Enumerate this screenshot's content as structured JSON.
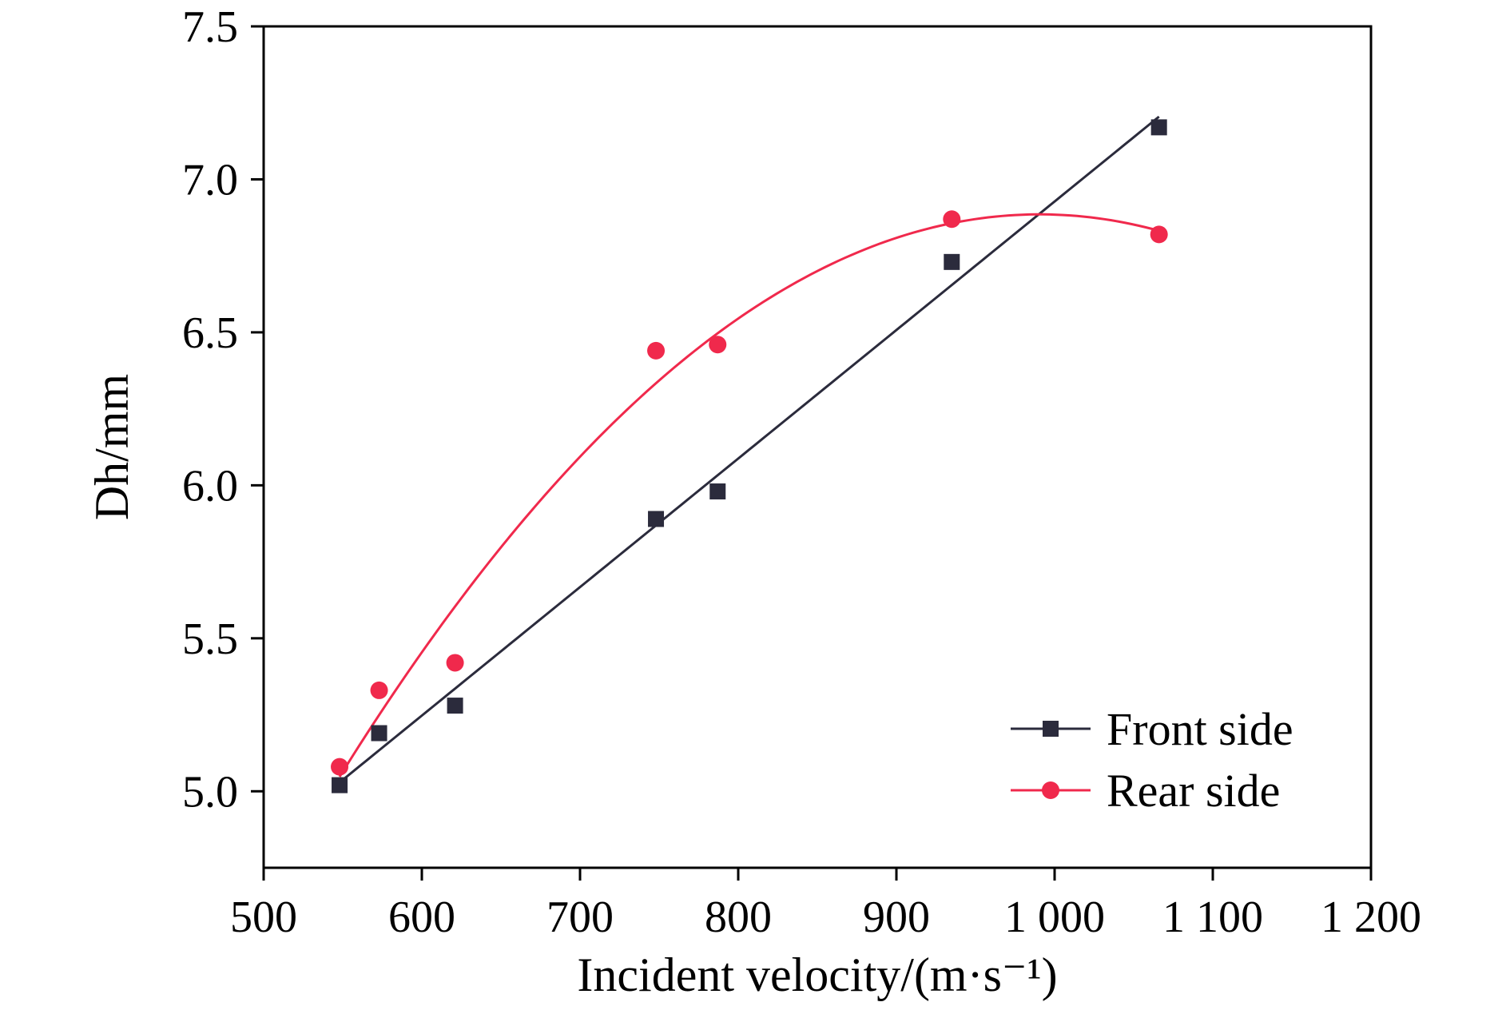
{
  "chart_data": {
    "type": "scatter",
    "xlabel": "Incident velocity/(m·s⁻¹)",
    "ylabel": "Dh/mm",
    "xlim": [
      500,
      1200
    ],
    "ylim": [
      4.75,
      7.5
    ],
    "x_ticks": [
      500,
      600,
      700,
      800,
      900,
      1000,
      1100,
      1200
    ],
    "x_tick_labels": [
      "500",
      "600",
      "700",
      "800",
      "900",
      "1 000",
      "1 100",
      "1 200"
    ],
    "y_ticks": [
      5.0,
      5.5,
      6.0,
      6.5,
      7.0,
      7.5
    ],
    "y_tick_labels": [
      "5.0",
      "5.5",
      "6.0",
      "6.5",
      "7.0",
      "7.5"
    ],
    "grid": false,
    "legend_position": "bottom-right",
    "series": [
      {
        "name": "Front side",
        "marker": "square",
        "color": "#2b2b3c",
        "fit": "linear",
        "x": [
          548,
          573,
          621,
          748,
          787,
          935,
          1066
        ],
        "y": [
          5.02,
          5.19,
          5.28,
          5.89,
          5.98,
          6.73,
          7.17
        ]
      },
      {
        "name": "Rear side",
        "marker": "circle",
        "color": "#f0294c",
        "fit": "polynomial",
        "x": [
          548,
          573,
          621,
          748,
          787,
          935,
          1066
        ],
        "y": [
          5.08,
          5.33,
          5.42,
          6.44,
          6.46,
          6.87,
          6.82
        ]
      }
    ]
  }
}
